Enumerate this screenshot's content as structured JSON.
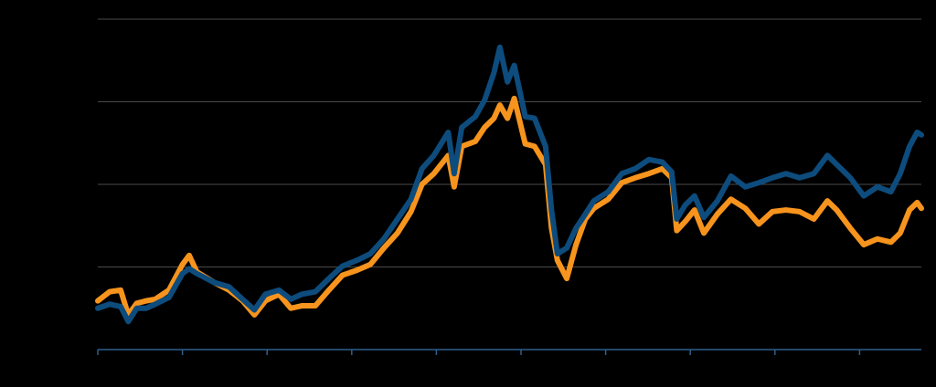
{
  "chart_data": {
    "type": "line",
    "x": [
      0,
      0.14,
      0.27,
      0.36,
      0.46,
      0.57,
      0.68,
      0.84,
      1.0,
      1.08,
      1.17,
      1.38,
      1.55,
      1.71,
      1.85,
      1.98,
      2.14,
      2.28,
      2.41,
      2.57,
      2.73,
      2.89,
      3.06,
      3.22,
      3.38,
      3.54,
      3.7,
      3.83,
      3.97,
      4.14,
      4.21,
      4.3,
      4.46,
      4.57,
      4.68,
      4.75,
      4.84,
      4.92,
      5.05,
      5.16,
      5.29,
      5.36,
      5.43,
      5.54,
      5.65,
      5.76,
      5.86,
      6.03,
      6.19,
      6.35,
      6.51,
      6.67,
      6.78,
      6.84,
      6.94,
      7.05,
      7.16,
      7.32,
      7.48,
      7.65,
      7.81,
      7.97,
      8.13,
      8.29,
      8.46,
      8.62,
      8.73,
      8.89,
      9.05,
      9.21,
      9.37,
      9.48,
      9.59,
      9.68,
      9.73
    ],
    "series": [
      {
        "color": "#f7941d",
        "values": [
          0.59,
          0.7,
          0.72,
          0.42,
          0.56,
          0.59,
          0.61,
          0.72,
          1.03,
          1.14,
          0.94,
          0.81,
          0.72,
          0.59,
          0.42,
          0.59,
          0.67,
          0.5,
          0.53,
          0.53,
          0.72,
          0.9,
          0.96,
          1.03,
          1.23,
          1.41,
          1.67,
          2.0,
          2.13,
          2.35,
          1.97,
          2.46,
          2.52,
          2.69,
          2.8,
          2.96,
          2.8,
          3.04,
          2.49,
          2.46,
          2.24,
          1.47,
          1.08,
          0.86,
          1.27,
          1.58,
          1.71,
          1.82,
          2.02,
          2.08,
          2.13,
          2.19,
          2.08,
          1.44,
          1.55,
          1.69,
          1.41,
          1.64,
          1.82,
          1.71,
          1.52,
          1.67,
          1.69,
          1.67,
          1.58,
          1.8,
          1.69,
          1.47,
          1.27,
          1.34,
          1.3,
          1.41,
          1.69,
          1.78,
          1.71
        ]
      },
      {
        "color": "#0d4c7d",
        "values": [
          0.5,
          0.55,
          0.52,
          0.34,
          0.5,
          0.5,
          0.55,
          0.63,
          0.92,
          0.98,
          0.92,
          0.81,
          0.76,
          0.61,
          0.48,
          0.67,
          0.72,
          0.61,
          0.67,
          0.7,
          0.86,
          1.01,
          1.08,
          1.16,
          1.34,
          1.58,
          1.82,
          2.19,
          2.35,
          2.63,
          2.13,
          2.69,
          2.82,
          3.02,
          3.35,
          3.66,
          3.24,
          3.44,
          2.82,
          2.8,
          2.46,
          1.69,
          1.16,
          1.23,
          1.47,
          1.64,
          1.8,
          1.91,
          2.13,
          2.19,
          2.3,
          2.27,
          2.15,
          1.58,
          1.75,
          1.86,
          1.6,
          1.8,
          2.1,
          1.97,
          2.02,
          2.08,
          2.13,
          2.08,
          2.13,
          2.35,
          2.24,
          2.08,
          1.86,
          1.97,
          1.91,
          2.13,
          2.46,
          2.63,
          2.6
        ]
      }
    ],
    "xlim": [
      0,
      9.73
    ],
    "xticks": [
      0,
      1,
      2,
      3,
      4,
      5,
      6,
      7,
      8,
      9
    ],
    "ylim": [
      0,
      4
    ],
    "yticks": [
      0,
      1,
      2,
      3,
      4
    ],
    "grid": true
  }
}
